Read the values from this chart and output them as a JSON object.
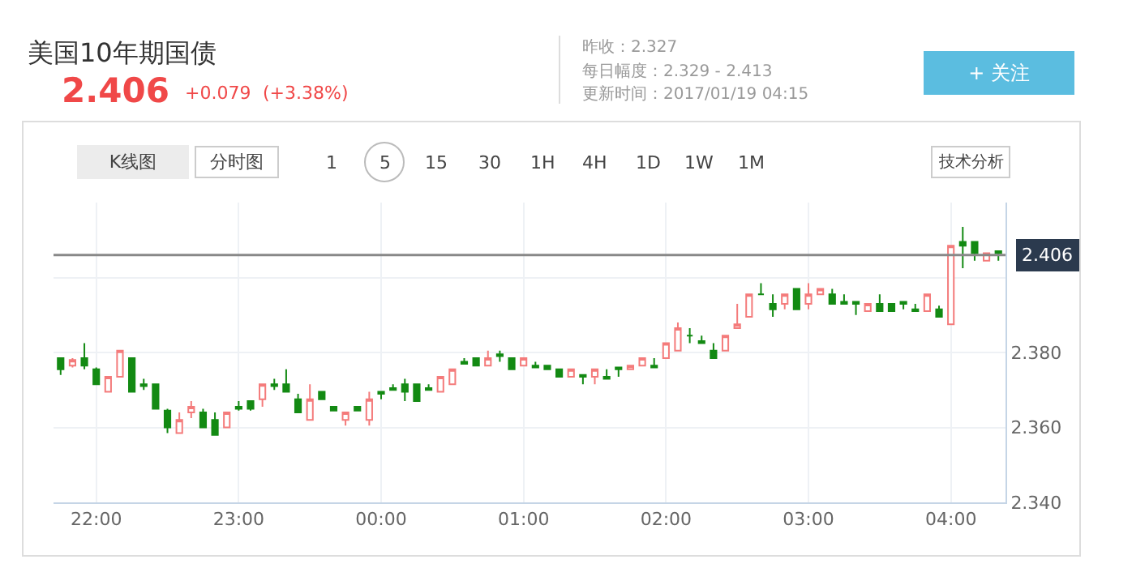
{
  "chart_data": {
    "type": "candlestick",
    "title": "美国10年期国债",
    "subtitle": "2.406",
    "annotations": [
      "+0.079",
      "(+3.38%)",
      "昨收：2.327",
      "每日幅度：2.329 - 2.413",
      "更新时间：2017/01/19 04:15",
      "+ 关注",
      "K线图",
      "分时图",
      "1 5 15 30 1H 4H 1D 1W 1M",
      "技术分析"
    ],
    "x": [
      "2017-01-18T21:45",
      "2017-01-18T21:50",
      "2017-01-18T21:55",
      "2017-01-18T22:00",
      "2017-01-18T22:05",
      "2017-01-18T22:10",
      "2017-01-18T22:15",
      "2017-01-18T22:20",
      "2017-01-18T22:25",
      "2017-01-18T22:30",
      "2017-01-18T22:35",
      "2017-01-18T22:40",
      "2017-01-18T22:45",
      "2017-01-18T22:50",
      "2017-01-18T22:55",
      "2017-01-18T23:00",
      "2017-01-18T23:05",
      "2017-01-18T23:10",
      "2017-01-18T23:15",
      "2017-01-18T23:20",
      "2017-01-18T23:25",
      "2017-01-18T23:30",
      "2017-01-18T23:35",
      "2017-01-18T23:40",
      "2017-01-18T23:45",
      "2017-01-18T23:50",
      "2017-01-18T23:55",
      "2017-01-19T00:00",
      "2017-01-19T00:05",
      "2017-01-19T00:10",
      "2017-01-19T00:15",
      "2017-01-19T00:20",
      "2017-01-19T00:25",
      "2017-01-19T00:30",
      "2017-01-19T00:35",
      "2017-01-19T00:40",
      "2017-01-19T00:45",
      "2017-01-19T00:50",
      "2017-01-19T00:55",
      "2017-01-19T01:00",
      "2017-01-19T01:05",
      "2017-01-19T01:10",
      "2017-01-19T01:15",
      "2017-01-19T01:20",
      "2017-01-19T01:25",
      "2017-01-19T01:30",
      "2017-01-19T01:35",
      "2017-01-19T01:40",
      "2017-01-19T01:45",
      "2017-01-19T01:50",
      "2017-01-19T01:55",
      "2017-01-19T02:00",
      "2017-01-19T02:05",
      "2017-01-19T02:10",
      "2017-01-19T02:15",
      "2017-01-19T02:20",
      "2017-01-19T02:25",
      "2017-01-19T02:30",
      "2017-01-19T02:35",
      "2017-01-19T02:40",
      "2017-01-19T02:45",
      "2017-01-19T02:50",
      "2017-01-19T02:55",
      "2017-01-19T03:00",
      "2017-01-19T03:05",
      "2017-01-19T03:10",
      "2017-01-19T03:15",
      "2017-01-19T03:20",
      "2017-01-19T03:25",
      "2017-01-19T03:30",
      "2017-01-19T03:35",
      "2017-01-19T03:40",
      "2017-01-19T03:45",
      "2017-01-19T03:50",
      "2017-01-19T03:55",
      "2017-01-19T04:00",
      "2017-01-19T04:05",
      "2017-01-19T04:10",
      "2017-01-19T04:15",
      "2017-01-19T04:20"
    ],
    "ohlc": [
      [
        2.3785,
        2.3785,
        2.374,
        2.3755
      ],
      [
        2.3765,
        2.3785,
        2.376,
        2.378
      ],
      [
        2.3785,
        2.3825,
        2.3755,
        2.3765
      ],
      [
        2.3755,
        2.376,
        2.3715,
        2.3715
      ],
      [
        2.3695,
        2.3735,
        2.3695,
        2.3735
      ],
      [
        2.3735,
        2.3805,
        2.3735,
        2.3805
      ],
      [
        2.3785,
        2.3785,
        2.3695,
        2.3695
      ],
      [
        2.3715,
        2.373,
        2.37,
        2.371
      ],
      [
        2.3715,
        2.3715,
        2.365,
        2.365
      ],
      [
        2.3645,
        2.365,
        2.3585,
        2.36
      ],
      [
        2.3585,
        2.364,
        2.3585,
        2.362
      ],
      [
        2.364,
        2.367,
        2.3625,
        2.3655
      ],
      [
        2.364,
        2.365,
        2.36,
        2.36
      ],
      [
        2.362,
        2.364,
        2.358,
        2.358
      ],
      [
        2.36,
        2.364,
        2.36,
        2.364
      ],
      [
        2.3655,
        2.367,
        2.3645,
        2.365
      ],
      [
        2.367,
        2.367,
        2.3645,
        2.365
      ],
      [
        2.3675,
        2.3715,
        2.3655,
        2.3715
      ],
      [
        2.3715,
        2.373,
        2.37,
        2.371
      ],
      [
        2.3715,
        2.3755,
        2.3695,
        2.3695
      ],
      [
        2.3675,
        2.369,
        2.364,
        2.364
      ],
      [
        2.362,
        2.3715,
        2.362,
        2.3675
      ],
      [
        2.3695,
        2.3695,
        2.3675,
        2.3675
      ],
      [
        2.3655,
        2.3655,
        2.3645,
        2.3645
      ],
      [
        2.362,
        2.364,
        2.3605,
        2.364
      ],
      [
        2.3655,
        2.3655,
        2.3645,
        2.3645
      ],
      [
        2.362,
        2.3695,
        2.3605,
        2.3675
      ],
      [
        2.3695,
        2.3695,
        2.3675,
        2.369
      ],
      [
        2.3705,
        2.3715,
        2.37,
        2.37
      ],
      [
        2.3715,
        2.373,
        2.367,
        2.3695
      ],
      [
        2.3715,
        2.3715,
        2.367,
        2.367
      ],
      [
        2.3705,
        2.3715,
        2.37,
        2.37
      ],
      [
        2.3695,
        2.3735,
        2.3695,
        2.3735
      ],
      [
        2.3715,
        2.3755,
        2.3715,
        2.3755
      ],
      [
        2.3775,
        2.3785,
        2.377,
        2.377
      ],
      [
        2.3785,
        2.3785,
        2.3765,
        2.3765
      ],
      [
        2.3765,
        2.3805,
        2.3765,
        2.3785
      ],
      [
        2.3795,
        2.3805,
        2.3775,
        2.379
      ],
      [
        2.3785,
        2.3785,
        2.3755,
        2.3755
      ],
      [
        2.3765,
        2.3785,
        2.3765,
        2.3785
      ],
      [
        2.3765,
        2.3775,
        2.376,
        2.376
      ],
      [
        2.3765,
        2.3765,
        2.3755,
        2.3755
      ],
      [
        2.3755,
        2.3755,
        2.3735,
        2.3735
      ],
      [
        2.3735,
        2.3755,
        2.3735,
        2.3755
      ],
      [
        2.374,
        2.374,
        2.3715,
        2.3735
      ],
      [
        2.3735,
        2.3755,
        2.3715,
        2.3755
      ],
      [
        2.3735,
        2.3755,
        2.373,
        2.373
      ],
      [
        2.376,
        2.376,
        2.3735,
        2.3755
      ],
      [
        2.3755,
        2.3765,
        2.3755,
        2.3765
      ],
      [
        2.3765,
        2.3785,
        2.3765,
        2.3785
      ],
      [
        2.3765,
        2.3785,
        2.376,
        2.376
      ],
      [
        2.3785,
        2.3825,
        2.3785,
        2.3825
      ],
      [
        2.3805,
        2.388,
        2.3805,
        2.3865
      ],
      [
        2.3845,
        2.3865,
        2.3825,
        2.3845
      ],
      [
        2.383,
        2.3845,
        2.3825,
        2.3825
      ],
      [
        2.3805,
        2.3825,
        2.3785,
        2.3785
      ],
      [
        2.3805,
        2.3845,
        2.3805,
        2.3845
      ],
      [
        2.3865,
        2.393,
        2.3865,
        2.3875
      ],
      [
        2.3895,
        2.3955,
        2.3895,
        2.3955
      ],
      [
        2.3955,
        2.3985,
        2.3955,
        2.3955
      ],
      [
        2.393,
        2.3955,
        2.3895,
        2.3915
      ],
      [
        2.393,
        2.3955,
        2.3915,
        2.3955
      ],
      [
        2.397,
        2.397,
        2.3915,
        2.3915
      ],
      [
        2.393,
        2.3985,
        2.3915,
        2.3955
      ],
      [
        2.3955,
        2.397,
        2.3955,
        2.397
      ],
      [
        2.3955,
        2.397,
        2.393,
        2.393
      ],
      [
        2.3935,
        2.3955,
        2.393,
        2.393
      ],
      [
        2.3935,
        2.3935,
        2.39,
        2.393
      ],
      [
        2.391,
        2.393,
        2.391,
        2.393
      ],
      [
        2.393,
        2.3955,
        2.391,
        2.391
      ],
      [
        2.393,
        2.393,
        2.391,
        2.391
      ],
      [
        2.3935,
        2.3935,
        2.3915,
        2.393
      ],
      [
        2.3915,
        2.393,
        2.391,
        2.391
      ],
      [
        2.391,
        2.3955,
        2.391,
        2.3955
      ],
      [
        2.3915,
        2.3925,
        2.3895,
        2.3895
      ],
      [
        2.3875,
        2.4085,
        2.3875,
        2.4085
      ],
      [
        2.4095,
        2.4135,
        2.4025,
        2.4085
      ],
      [
        2.4095,
        2.4095,
        2.4045,
        2.4065
      ],
      [
        2.4045,
        2.4065,
        2.4045,
        2.4065
      ],
      [
        2.407,
        2.407,
        2.4045,
        2.4065
      ]
    ],
    "colors": [
      "#138a13",
      "#f47b7b",
      "#138a13",
      "#138a13",
      "#f47b7b",
      "#f47b7b",
      "#138a13",
      "#138a13",
      "#138a13",
      "#138a13",
      "#f47b7b",
      "#f47b7b",
      "#138a13",
      "#138a13",
      "#f47b7b",
      "#138a13",
      "#138a13",
      "#f47b7b",
      "#138a13",
      "#138a13",
      "#138a13",
      "#f47b7b",
      "#138a13",
      "#138a13",
      "#f47b7b",
      "#138a13",
      "#f47b7b",
      "#138a13",
      "#138a13",
      "#138a13",
      "#138a13",
      "#138a13",
      "#f47b7b",
      "#f47b7b",
      "#138a13",
      "#138a13",
      "#f47b7b",
      "#138a13",
      "#138a13",
      "#f47b7b",
      "#138a13",
      "#138a13",
      "#138a13",
      "#f47b7b",
      "#138a13",
      "#f47b7b",
      "#138a13",
      "#138a13",
      "#f47b7b",
      "#f47b7b",
      "#138a13",
      "#f47b7b",
      "#f47b7b",
      "#138a13",
      "#138a13",
      "#138a13",
      "#f47b7b",
      "#f47b7b",
      "#f47b7b",
      "#138a13",
      "#138a13",
      "#f47b7b",
      "#138a13",
      "#f47b7b",
      "#f47b7b",
      "#138a13",
      "#138a13",
      "#138a13",
      "#f47b7b",
      "#138a13",
      "#138a13",
      "#138a13",
      "#138a13",
      "#f47b7b",
      "#138a13",
      "#f47b7b",
      "#138a13",
      "#138a13",
      "#f47b7b",
      "#138a13"
    ],
    "xlim": [
      "2017-01-18T21:42",
      "2017-01-19T04:23"
    ],
    "ylim": [
      2.34,
      2.42
    ],
    "xticks": [
      {
        "value": "2017-01-18T22:00",
        "label": "22:00"
      },
      {
        "value": "2017-01-18T23:00",
        "label": "23:00"
      },
      {
        "value": "2017-01-19T00:00",
        "label": "00:00"
      },
      {
        "value": "2017-01-19T01:00",
        "label": "01:00"
      },
      {
        "value": "2017-01-19T02:00",
        "label": "02:00"
      },
      {
        "value": "2017-01-19T03:00",
        "label": "03:00"
      },
      {
        "value": "2017-01-19T04:00",
        "label": "04:00"
      }
    ],
    "yticks": [
      {
        "value": 2.34,
        "label": "2.340"
      },
      {
        "value": 2.36,
        "label": "2.360"
      },
      {
        "value": 2.38,
        "label": "2.380"
      },
      {
        "value": 2.4,
        "label": null
      }
    ],
    "ref_lines": [
      {
        "axis": "y",
        "value": 2.406,
        "label": "2.406",
        "color": "#888888"
      }
    ],
    "grid": true,
    "legend": false
  }
}
